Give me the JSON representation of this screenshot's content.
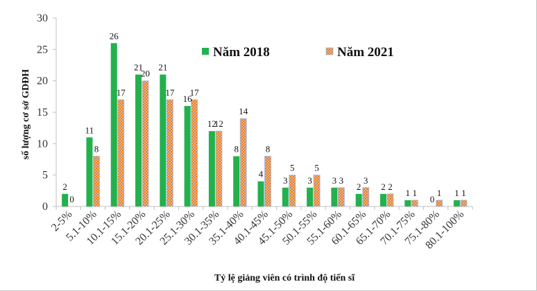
{
  "chart_data": {
    "type": "bar",
    "categories": [
      "2-5%",
      "5.1-10%",
      "10.1-15%",
      "15.1-20%",
      "20.1-25%",
      "25.1-30%",
      "30.1-35%",
      "35.1-40%",
      "40.1-45%",
      "45.1-50%",
      "50.1-55%",
      "55.1-60%",
      "60.1-65%",
      "65.1-70%",
      "70.1-75%",
      "75.1-80%",
      "80.1-100%"
    ],
    "series": [
      {
        "name": "Năm 2018",
        "values": [
          2,
          11,
          26,
          21,
          21,
          16,
          12,
          8,
          4,
          3,
          3,
          3,
          2,
          2,
          1,
          0,
          1
        ],
        "color": "#22b14c",
        "pattern": "solid"
      },
      {
        "name": "Năm 2021",
        "values": [
          0,
          8,
          17,
          20,
          17,
          17,
          12,
          14,
          8,
          5,
          5,
          3,
          3,
          2,
          1,
          1,
          1
        ],
        "color": "#f4a460",
        "pattern": "checker-orange-blue"
      }
    ],
    "title": "",
    "xlabel": "Tỷ lệ giảng viên có trình độ tiến sĩ",
    "ylabel": "số lượng cơ sở GDĐH",
    "ylim": [
      0,
      30
    ],
    "yticks": [
      0,
      5,
      10,
      15,
      20,
      25,
      30
    ],
    "grid": false,
    "legend": "top-center",
    "axis_color": "#bfbfbf"
  }
}
